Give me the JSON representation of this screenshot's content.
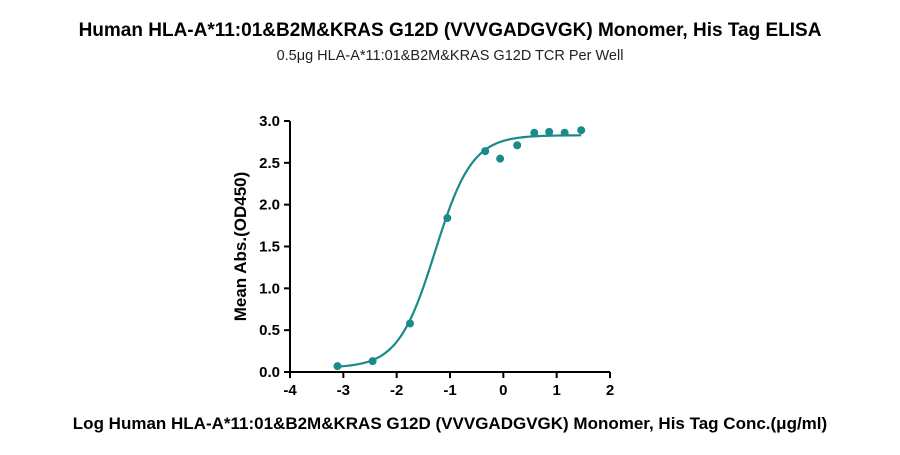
{
  "chart_data": {
    "type": "scatter",
    "title": "Human HLA-A*11:01&B2M&KRAS G12D (VVVGADGVGK) Monomer, His Tag ELISA",
    "subtitle": "0.5μg HLA-A*11:01&B2M&KRAS G12D TCR Per Well",
    "xlabel": "Log Human HLA-A*11:01&B2M&KRAS G12D (VVVGADGVGK) Monomer, His Tag Conc.(μg/ml)",
    "ylabel": "Mean Abs.(OD450)",
    "xlim": [
      -4,
      2
    ],
    "ylim": [
      0,
      3.0
    ],
    "x_ticks": [
      -4,
      -3,
      -2,
      -1,
      0,
      1,
      2
    ],
    "y_ticks": [
      0.0,
      0.5,
      1.0,
      1.5,
      2.0,
      2.5,
      3.0
    ],
    "x_tick_labels": [
      "-4",
      "-3",
      "-2",
      "-1",
      "0",
      "1",
      "2"
    ],
    "y_tick_labels": [
      "0.0",
      "0.5",
      "1.0",
      "1.5",
      "2.0",
      "2.5",
      "3.0"
    ],
    "grid": false,
    "color": "#1a8a8a",
    "series": [
      {
        "points": [
          {
            "x": -3.11,
            "y": 0.07
          },
          {
            "x": -2.45,
            "y": 0.13
          },
          {
            "x": -1.75,
            "y": 0.58
          },
          {
            "x": -1.05,
            "y": 1.84
          },
          {
            "x": -0.34,
            "y": 2.64
          },
          {
            "x": -0.06,
            "y": 2.55
          },
          {
            "x": 0.26,
            "y": 2.71
          },
          {
            "x": 0.58,
            "y": 2.86
          },
          {
            "x": 0.86,
            "y": 2.87
          },
          {
            "x": 1.15,
            "y": 2.86
          },
          {
            "x": 1.46,
            "y": 2.89
          }
        ],
        "fit": {
          "bottom": 0.05,
          "top": 2.83,
          "logEC50": -1.28,
          "hill": 1.25,
          "x_range": [
            -3.11,
            1.46
          ]
        }
      }
    ]
  }
}
